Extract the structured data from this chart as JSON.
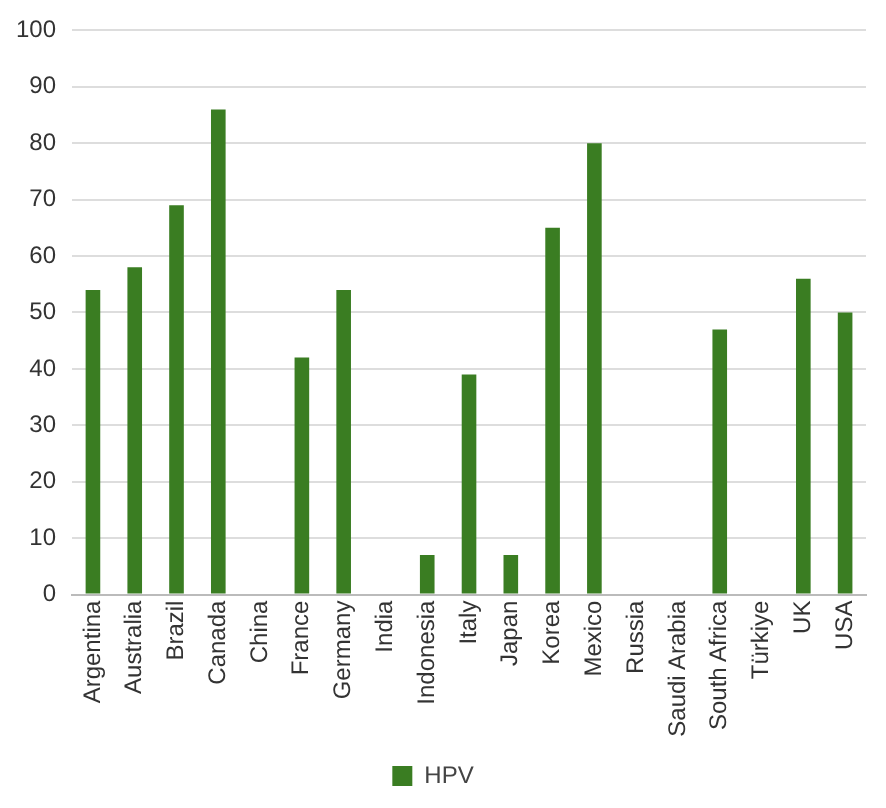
{
  "chart_data": {
    "type": "bar",
    "categories": [
      "Argentina",
      "Australia",
      "Brazil",
      "Canada",
      "China",
      "France",
      "Germany",
      "India",
      "Indonesia",
      "Italy",
      "Japan",
      "Korea",
      "Mexico",
      "Russia",
      "Saudi Arabia",
      "South Africa",
      "Türkiye",
      "UK",
      "USA"
    ],
    "series": [
      {
        "name": "HPV",
        "color": "#3a7d22",
        "values": [
          54,
          58,
          69,
          86,
          null,
          42,
          54,
          null,
          7,
          39,
          7,
          65,
          80,
          null,
          null,
          47,
          null,
          56,
          50
        ]
      }
    ],
    "ylim": [
      0,
      100
    ],
    "yticks": [
      0,
      10,
      20,
      30,
      40,
      50,
      60,
      70,
      80,
      90,
      100
    ],
    "grid": "y",
    "legend": "bottom"
  }
}
